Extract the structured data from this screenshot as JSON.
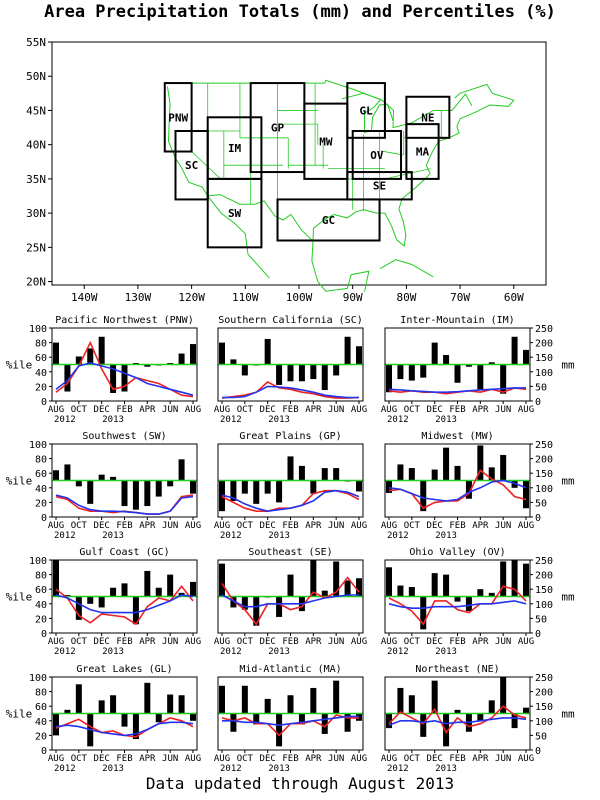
{
  "title": "Area Precipitation Totals (mm) and Percentiles (%)",
  "footer": "Data updated through August 2013",
  "map": {
    "lat_ticks": [
      "55N",
      "50N",
      "45N",
      "40N",
      "35N",
      "30N",
      "25N",
      "20N"
    ],
    "lon_ticks": [
      "140W",
      "130W",
      "120W",
      "110W",
      "100W",
      "90W",
      "80W",
      "70W",
      "60W"
    ],
    "colors": {
      "coast": "#22cc22",
      "region_box": "#000000",
      "region_label": "#2233ff"
    },
    "regions": [
      {
        "code": "PNW",
        "lon": [
          -125,
          -120
        ],
        "lat": [
          39,
          49
        ]
      },
      {
        "code": "SC",
        "lon": [
          -123,
          -117
        ],
        "lat": [
          32,
          42
        ]
      },
      {
        "code": "IM",
        "lon": [
          -117,
          -107
        ],
        "lat": [
          35,
          44
        ]
      },
      {
        "code": "SW",
        "lon": [
          -117,
          -107
        ],
        "lat": [
          25,
          35
        ]
      },
      {
        "code": "GP",
        "lon": [
          -109,
          -99
        ],
        "lat": [
          36,
          49
        ]
      },
      {
        "code": "MW",
        "lon": [
          -99,
          -91
        ],
        "lat": [
          35,
          46
        ]
      },
      {
        "code": "GL",
        "lon": [
          -91,
          -84
        ],
        "lat": [
          41,
          49
        ]
      },
      {
        "code": "NE",
        "lon": [
          -80,
          -72
        ],
        "lat": [
          41,
          47
        ]
      },
      {
        "code": "OV",
        "lon": [
          -90,
          -81
        ],
        "lat": [
          35,
          42
        ]
      },
      {
        "code": "MA",
        "lon": [
          -80,
          -74
        ],
        "lat": [
          35,
          43
        ]
      },
      {
        "code": "SE",
        "lon": [
          -91,
          -79
        ],
        "lat": [
          32,
          36
        ]
      },
      {
        "code": "GC",
        "lon": [
          -104,
          -85
        ],
        "lat": [
          26,
          32
        ]
      }
    ]
  },
  "panels": {
    "x_labels": [
      "AUG",
      "OCT",
      "DEC",
      "FEB",
      "APR",
      "JUN",
      "AUG"
    ],
    "year_start": "2012",
    "year_mid": "2013",
    "left_axis_label": "%ile",
    "right_axis_label": "mm",
    "left_ticks": [
      "0",
      "20",
      "40",
      "60",
      "80",
      "100"
    ],
    "right_ticks": [
      "0",
      "50",
      "100",
      "150",
      "200",
      "250"
    ],
    "colors": {
      "bars": "#000000",
      "threshold": "#22cc22",
      "series_red": "#ee2222",
      "series_blue": "#2233ee"
    }
  },
  "chart_data": [
    {
      "type": "bar",
      "title": "Pacific Northwest (PNW)",
      "percentile": [
        80,
        13,
        61,
        72,
        88,
        11,
        13,
        52,
        47,
        50,
        52,
        65,
        78
      ],
      "red_mm": [
        30,
        60,
        120,
        200,
        110,
        40,
        50,
        80,
        70,
        60,
        40,
        20,
        15
      ],
      "blue_mm": [
        40,
        70,
        120,
        130,
        120,
        110,
        95,
        80,
        60,
        50,
        40,
        30,
        20
      ]
    },
    {
      "type": "bar",
      "title": "Southern California (SC)",
      "percentile": [
        80,
        57,
        35,
        50,
        85,
        22,
        27,
        27,
        30,
        15,
        35,
        88,
        75
      ],
      "red_mm": [
        10,
        15,
        20,
        30,
        65,
        45,
        40,
        30,
        25,
        15,
        10,
        10,
        12
      ],
      "blue_mm": [
        12,
        12,
        15,
        30,
        50,
        48,
        45,
        38,
        30,
        20,
        15,
        12,
        12
      ]
    },
    {
      "type": "bar",
      "title": "Inter-Mountain (IM)",
      "percentile": [
        12,
        30,
        28,
        32,
        80,
        63,
        25,
        47,
        16,
        53,
        10,
        88,
        70
      ],
      "red_mm": [
        35,
        30,
        35,
        30,
        30,
        25,
        30,
        35,
        30,
        40,
        30,
        45,
        40
      ],
      "blue_mm": [
        40,
        38,
        35,
        33,
        30,
        30,
        32,
        35,
        38,
        40,
        42,
        45,
        45
      ]
    },
    {
      "type": "bar",
      "title": "Southwest (SW)",
      "percentile": [
        64,
        72,
        42,
        18,
        58,
        55,
        15,
        10,
        15,
        28,
        42,
        79,
        32
      ],
      "red_mm": [
        70,
        60,
        30,
        20,
        20,
        15,
        20,
        15,
        10,
        10,
        20,
        70,
        75
      ],
      "blue_mm": [
        75,
        65,
        40,
        25,
        20,
        20,
        18,
        15,
        10,
        10,
        20,
        65,
        70
      ]
    },
    {
      "type": "bar",
      "title": "Great Plains (GP)",
      "percentile": [
        8,
        22,
        32,
        18,
        32,
        20,
        83,
        70,
        32,
        67,
        67,
        50,
        35
      ],
      "red_mm": [
        70,
        50,
        30,
        20,
        20,
        30,
        30,
        40,
        80,
        90,
        90,
        80,
        60
      ],
      "blue_mm": [
        75,
        65,
        45,
        30,
        20,
        25,
        30,
        40,
        55,
        85,
        90,
        85,
        70
      ]
    },
    {
      "type": "bar",
      "title": "Midwest (MW)",
      "percentile": [
        33,
        72,
        67,
        8,
        65,
        95,
        70,
        25,
        98,
        68,
        85,
        40,
        12
      ],
      "red_mm": [
        90,
        95,
        80,
        30,
        50,
        55,
        55,
        80,
        160,
        130,
        110,
        70,
        60
      ],
      "blue_mm": [
        100,
        95,
        80,
        65,
        60,
        55,
        60,
        85,
        100,
        120,
        125,
        115,
        100
      ]
    },
    {
      "type": "bar",
      "title": "Gulf Coast (GC)",
      "percentile": [
        100,
        52,
        18,
        40,
        35,
        62,
        68,
        12,
        85,
        62,
        80,
        55,
        70
      ],
      "red_mm": [
        150,
        120,
        60,
        35,
        65,
        60,
        55,
        30,
        90,
        120,
        110,
        160,
        110
      ],
      "blue_mm": [
        130,
        120,
        100,
        80,
        70,
        70,
        70,
        70,
        80,
        95,
        110,
        130,
        125
      ]
    },
    {
      "type": "bar",
      "title": "Southeast (SE)",
      "percentile": [
        95,
        35,
        32,
        10,
        50,
        22,
        80,
        30,
        100,
        58,
        98,
        72,
        75
      ],
      "red_mm": [
        170,
        110,
        80,
        30,
        100,
        100,
        80,
        90,
        140,
        120,
        140,
        190,
        140
      ],
      "blue_mm": [
        130,
        110,
        90,
        90,
        100,
        100,
        100,
        100,
        110,
        120,
        125,
        130,
        130
      ]
    },
    {
      "type": "bar",
      "title": "Ohio Valley (OV)",
      "percentile": [
        90,
        65,
        63,
        5,
        82,
        80,
        43,
        30,
        60,
        55,
        98,
        100,
        95
      ],
      "red_mm": [
        120,
        100,
        75,
        30,
        110,
        110,
        80,
        70,
        100,
        100,
        160,
        150,
        110
      ],
      "blue_mm": [
        100,
        90,
        85,
        85,
        90,
        90,
        90,
        95,
        100,
        100,
        105,
        110,
        100
      ]
    },
    {
      "type": "bar",
      "title": "Great Lakes (GL)",
      "percentile": [
        20,
        55,
        90,
        5,
        68,
        75,
        32,
        15,
        92,
        38,
        76,
        75,
        40
      ],
      "red_mm": [
        75,
        90,
        105,
        80,
        60,
        65,
        50,
        45,
        70,
        90,
        110,
        100,
        80
      ],
      "blue_mm": [
        80,
        85,
        80,
        70,
        60,
        55,
        50,
        55,
        70,
        90,
        95,
        95,
        90
      ]
    },
    {
      "type": "bar",
      "title": "Mid-Atlantic (MA)",
      "percentile": [
        88,
        25,
        88,
        35,
        70,
        5,
        75,
        35,
        85,
        22,
        95,
        25,
        40
      ],
      "red_mm": [
        110,
        100,
        110,
        90,
        90,
        50,
        90,
        90,
        100,
        80,
        120,
        110,
        110
      ],
      "blue_mm": [
        100,
        100,
        95,
        95,
        90,
        85,
        90,
        95,
        100,
        105,
        110,
        115,
        115
      ]
    },
    {
      "type": "bar",
      "title": "Northeast (NE)",
      "percentile": [
        30,
        85,
        75,
        18,
        95,
        5,
        55,
        25,
        40,
        68,
        100,
        30,
        58
      ],
      "red_mm": [
        90,
        130,
        110,
        90,
        140,
        60,
        110,
        80,
        90,
        110,
        150,
        120,
        110
      ],
      "blue_mm": [
        85,
        100,
        100,
        95,
        100,
        90,
        95,
        95,
        100,
        105,
        110,
        110,
        105
      ]
    }
  ]
}
